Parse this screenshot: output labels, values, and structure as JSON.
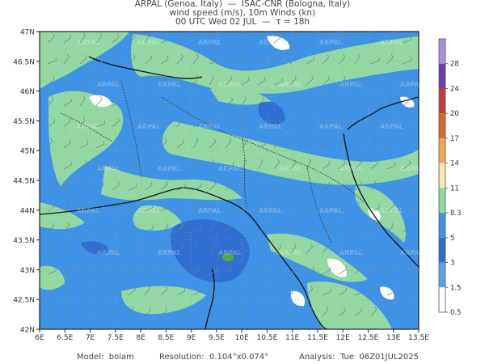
{
  "header": {
    "line1": "ARPAL (Genoa, Italy)  —  ISAC-CNR (Bologna, Italy)",
    "line2": "wind speed (m/s), 10m Winds (kn)",
    "line3": "00 UTC Wed 02 JUL  —  τ = 18h"
  },
  "map": {
    "lat_labels": [
      "47N",
      "46.5N",
      "46N",
      "45.5N",
      "45N",
      "44.5N",
      "44N",
      "43.5N",
      "43N",
      "42.5N",
      "42N"
    ],
    "lon_labels": [
      "6E",
      "6.5E",
      "7E",
      "7.5E",
      "8E",
      "8.5E",
      "9E",
      "9.5E",
      "10E",
      "10.5E",
      "11E",
      "11.5E",
      "12E",
      "12.5E",
      "13E",
      "13.5E"
    ],
    "watermark": "ARPAL",
    "colors": {
      "base": "#3f93e6",
      "light_band": "#93d8a3",
      "deep": "#2f6fd2",
      "calm": "#ffffff",
      "green_spot": "#5aa83a"
    }
  },
  "colorbar": {
    "labels": [
      "28",
      "24",
      "20",
      "17",
      "14",
      "11",
      "8.3",
      "5",
      "3",
      "1.5",
      "0.5"
    ],
    "colors": [
      "#a98fe0",
      "#6a3db0",
      "#c23b3b",
      "#d46a2c",
      "#eea65a",
      "#f7e7b4",
      "#93d8a3",
      "#3f93e6",
      "#2f6fd2",
      "#5aa2e8",
      "#ffffff"
    ]
  },
  "footer": {
    "model": "Model:  bolam",
    "resolution": "Resolution:  0.104°x0.074°",
    "analysis": "Analysis:  Tue  06Z01JUL2025"
  }
}
